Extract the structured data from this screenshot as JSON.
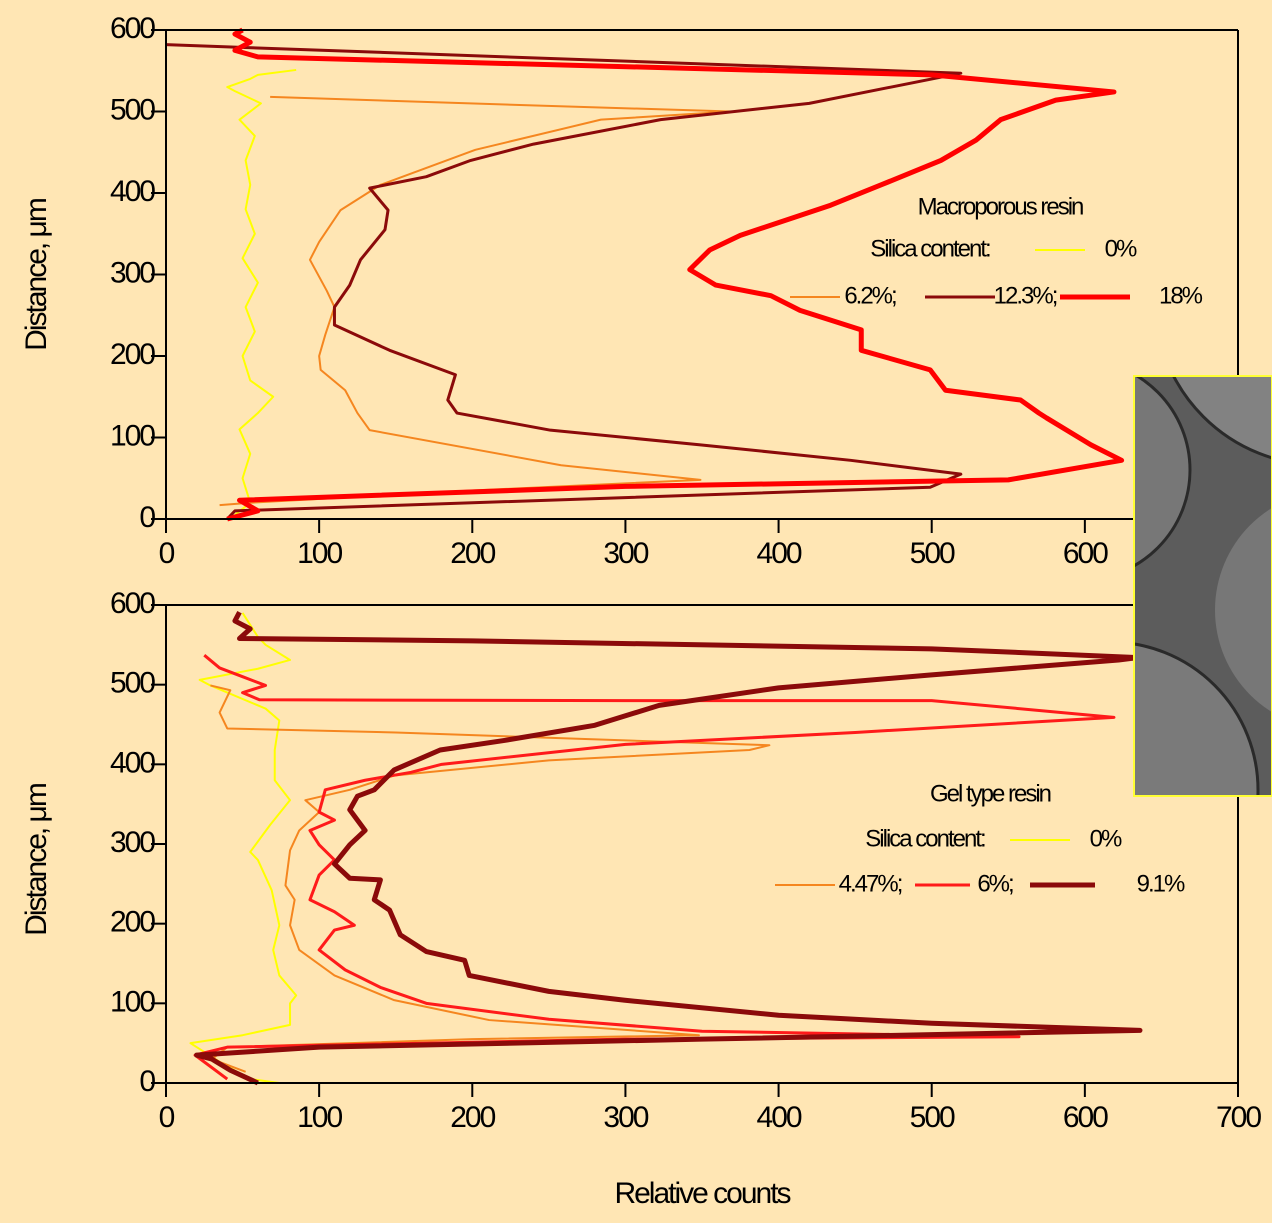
{
  "chart_data": [
    {
      "type": "line",
      "y_label": "Distance, μm",
      "annotation": "Macroporous resin",
      "legend_title": "Silica content:",
      "xlim": [
        0,
        700
      ],
      "xticks": [
        0,
        100,
        200,
        300,
        400,
        500,
        600
      ],
      "ylim": [
        0,
        600
      ],
      "yticks": [
        0,
        100,
        200,
        300,
        400,
        500,
        600
      ],
      "series": [
        {
          "name": "0%",
          "color": "#ffff00",
          "x": [
            45,
            55,
            50,
            55,
            48,
            60,
            70,
            55,
            50,
            58,
            52,
            60,
            50,
            58,
            52,
            55,
            52,
            58,
            48,
            62,
            45,
            40,
            55,
            60,
            85
          ],
          "values": [
            5,
            20,
            50,
            80,
            110,
            130,
            150,
            170,
            200,
            230,
            260,
            290,
            320,
            350,
            380,
            410,
            440,
            470,
            490,
            510,
            525,
            530,
            540,
            545,
            551
          ]
        },
        {
          "name": "6.2%;",
          "color": "#f5861f",
          "x": [
            35,
            55,
            200,
            349,
            258,
            133,
            125,
            117,
            101,
            100,
            104,
            110,
            105,
            94,
            100,
            114,
            140,
            202,
            284,
            369,
            231,
            68
          ],
          "values": [
            17,
            20,
            35,
            48,
            66,
            109,
            130,
            158,
            183,
            200,
            226,
            260,
            280,
            318,
            340,
            379,
            410,
            453,
            490,
            500,
            508,
            518
          ]
        },
        {
          "name": "12.3%;",
          "color": "#8b0a0a",
          "x": [
            40,
            45,
            499,
            519,
            447,
            349,
            251,
            190,
            184,
            189,
            146,
            110,
            110,
            120,
            127,
            143,
            145,
            133,
            170,
            199,
            240,
            323,
            420,
            519,
            0
          ],
          "values": [
            0,
            10,
            39,
            55,
            72,
            91,
            109,
            130,
            146,
            177,
            207,
            238,
            260,
            287,
            318,
            355,
            379,
            406,
            420,
            440,
            460,
            490,
            510,
            547,
            582
          ]
        },
        {
          "name": "18%",
          "color": "#ff0000",
          "x": [
            40,
            60,
            48,
            300,
            550,
            624,
            604,
            575,
            570,
            558,
            509,
            499,
            454,
            454,
            414,
            395,
            359,
            342,
            355,
            375,
            410,
            434,
            467,
            506,
            529,
            545,
            581,
            619,
            500,
            200,
            60,
            45,
            55,
            45,
            50
          ],
          "values": [
            0,
            10,
            23,
            40,
            48,
            72,
            91,
            124,
            130,
            146,
            158,
            183,
            207,
            232,
            256,
            274,
            287,
            306,
            330,
            348,
            370,
            385,
            410,
            440,
            465,
            490,
            514,
            524,
            545,
            560,
            567,
            575,
            585,
            595,
            600
          ]
        }
      ]
    },
    {
      "type": "line",
      "y_label": "Distance, μm",
      "x_label": "Relative counts",
      "annotation": "Gel type resin",
      "legend_title": "Silica content:",
      "xlim": [
        0,
        700
      ],
      "xticks": [
        0,
        100,
        200,
        300,
        400,
        500,
        600,
        700
      ],
      "ylim": [
        0,
        600
      ],
      "yticks": [
        0,
        100,
        200,
        300,
        400,
        500,
        600
      ],
      "series": [
        {
          "name": "0%",
          "color": "#ffff00",
          "x": [
            74,
            55,
            38,
            16,
            50,
            81,
            81,
            85,
            74,
            70,
            74,
            69,
            60,
            55,
            68,
            81,
            71,
            71,
            74,
            65,
            29,
            22,
            60,
            81,
            65,
            60,
            55,
            50
          ],
          "values": [
            0,
            5,
            23,
            50,
            60,
            73,
            100,
            110,
            135,
            167,
            198,
            242,
            280,
            290,
            324,
            355,
            380,
            418,
            455,
            470,
            499,
            506,
            520,
            531,
            550,
            560,
            575,
            590
          ]
        },
        {
          "name": "4.47%;",
          "color": "#f5861f",
          "x": [
            52,
            30,
            40,
            200,
            348,
            211,
            149,
            110,
            87,
            81,
            84,
            78,
            81,
            87,
            100,
            91,
            120,
            149,
            250,
            381,
            394,
            300,
            150,
            40,
            35,
            42,
            29
          ],
          "values": [
            14,
            30,
            45,
            55,
            60,
            79,
            104,
            135,
            167,
            198,
            230,
            248,
            292,
            317,
            340,
            355,
            368,
            386,
            405,
            418,
            424,
            430,
            440,
            445,
            465,
            493,
            499
          ]
        },
        {
          "name": "6%;",
          "color": "#ff1a1a",
          "x": [
            40,
            19,
            40,
            300,
            557,
            350,
            250,
            170,
            140,
            117,
            100,
            110,
            123,
            110,
            94,
            100,
            110,
            100,
            94,
            110,
            100,
            104,
            130,
            160,
            180,
            300,
            450,
            619,
            500,
            300,
            61,
            50,
            65,
            50,
            35,
            25
          ],
          "values": [
            5,
            35,
            45,
            55,
            58,
            65,
            80,
            100,
            120,
            142,
            167,
            192,
            198,
            215,
            230,
            261,
            280,
            299,
            317,
            330,
            340,
            368,
            380,
            390,
            400,
            425,
            440,
            459,
            480,
            480,
            481,
            490,
            499,
            510,
            521,
            537
          ]
        },
        {
          "name": "9.1%",
          "color": "#8b0a0a",
          "x": [
            60,
            42,
            30,
            20,
            100,
            350,
            636,
            500,
            400,
            299,
            250,
            198,
            195,
            170,
            153,
            146,
            136,
            140,
            120,
            110,
            120,
            130,
            120,
            125,
            136,
            149,
            179,
            221,
            280,
            322,
            400,
            498,
            622,
            635,
            500,
            200,
            48,
            55,
            45,
            48
          ],
          "values": [
            0,
            16,
            30,
            35,
            45,
            55,
            66,
            75,
            85,
            104,
            115,
            135,
            154,
            165,
            186,
            217,
            230,
            255,
            257,
            275,
            299,
            317,
            343,
            360,
            368,
            393,
            418,
            430,
            449,
            474,
            496,
            512,
            531,
            534,
            545,
            555,
            558,
            570,
            580,
            591
          ]
        }
      ]
    }
  ]
}
